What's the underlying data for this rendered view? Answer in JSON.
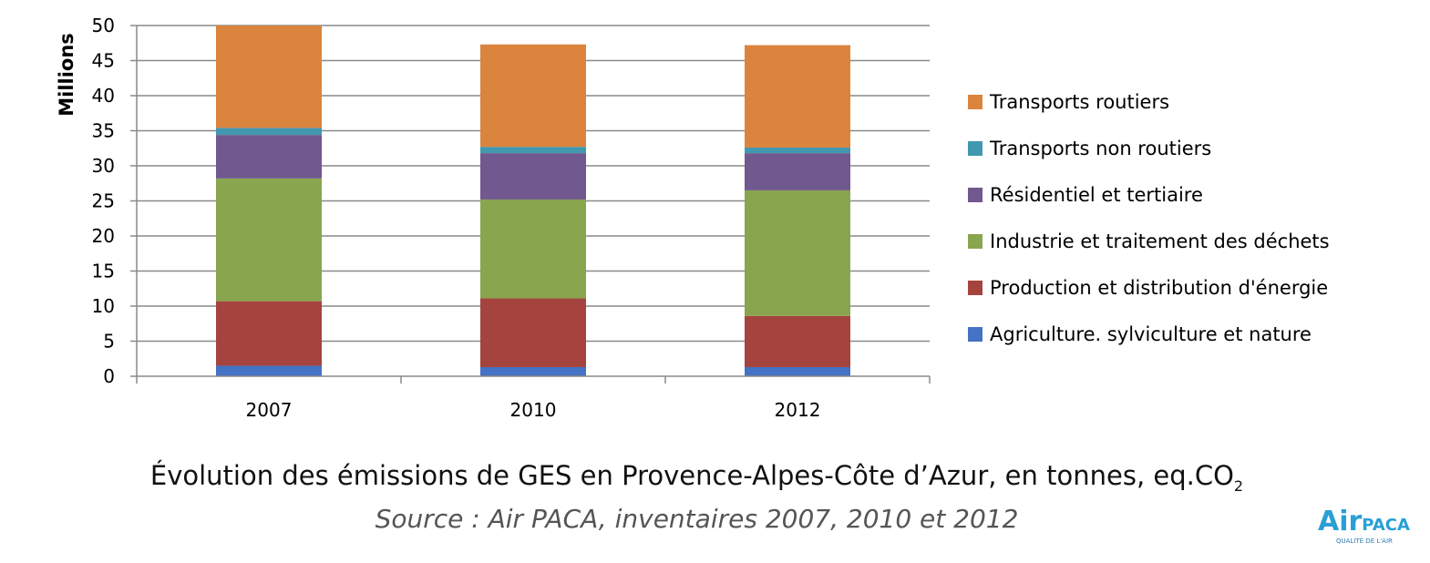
{
  "chart_data": {
    "type": "bar",
    "stacked": true,
    "categories": [
      "2007",
      "2010",
      "2012"
    ],
    "ylabel": "Millions",
    "ylim": [
      0,
      50
    ],
    "yticks": [
      0,
      5,
      10,
      15,
      20,
      25,
      30,
      35,
      40,
      45,
      50
    ],
    "grid": true,
    "legend_position": "right",
    "series": [
      {
        "name": "Agriculture. sylviculture et nature",
        "color": "#4472C4",
        "values": [
          1.5,
          1.3,
          1.3
        ]
      },
      {
        "name": "Production et distribution d'énergie",
        "color": "#A5443F",
        "values": [
          9.2,
          9.8,
          7.3
        ]
      },
      {
        "name": "Industrie et traitement des déchets",
        "color": "#89A54E",
        "values": [
          17.5,
          14.1,
          17.9
        ]
      },
      {
        "name": "Résidentiel et tertiaire",
        "color": "#71588F",
        "values": [
          6.2,
          6.6,
          5.3
        ]
      },
      {
        "name": "Transports non routiers",
        "color": "#4198AF",
        "values": [
          1.0,
          0.9,
          0.8
        ]
      },
      {
        "name": "Transports routiers",
        "color": "#DB843D",
        "values": [
          14.6,
          14.6,
          14.6
        ]
      }
    ]
  },
  "caption": {
    "title": "Évolution des émissions de GES en Provence-Alpes-Côte d’Azur, en tonnes, eq.CO",
    "title_sub": "2",
    "source": "Source : Air PACA, inventaires 2007, 2010 et 2012"
  },
  "logo": {
    "text_main": "Air",
    "text_secondary": "PACA",
    "tagline": "QUALITÉ DE L'AIR"
  }
}
